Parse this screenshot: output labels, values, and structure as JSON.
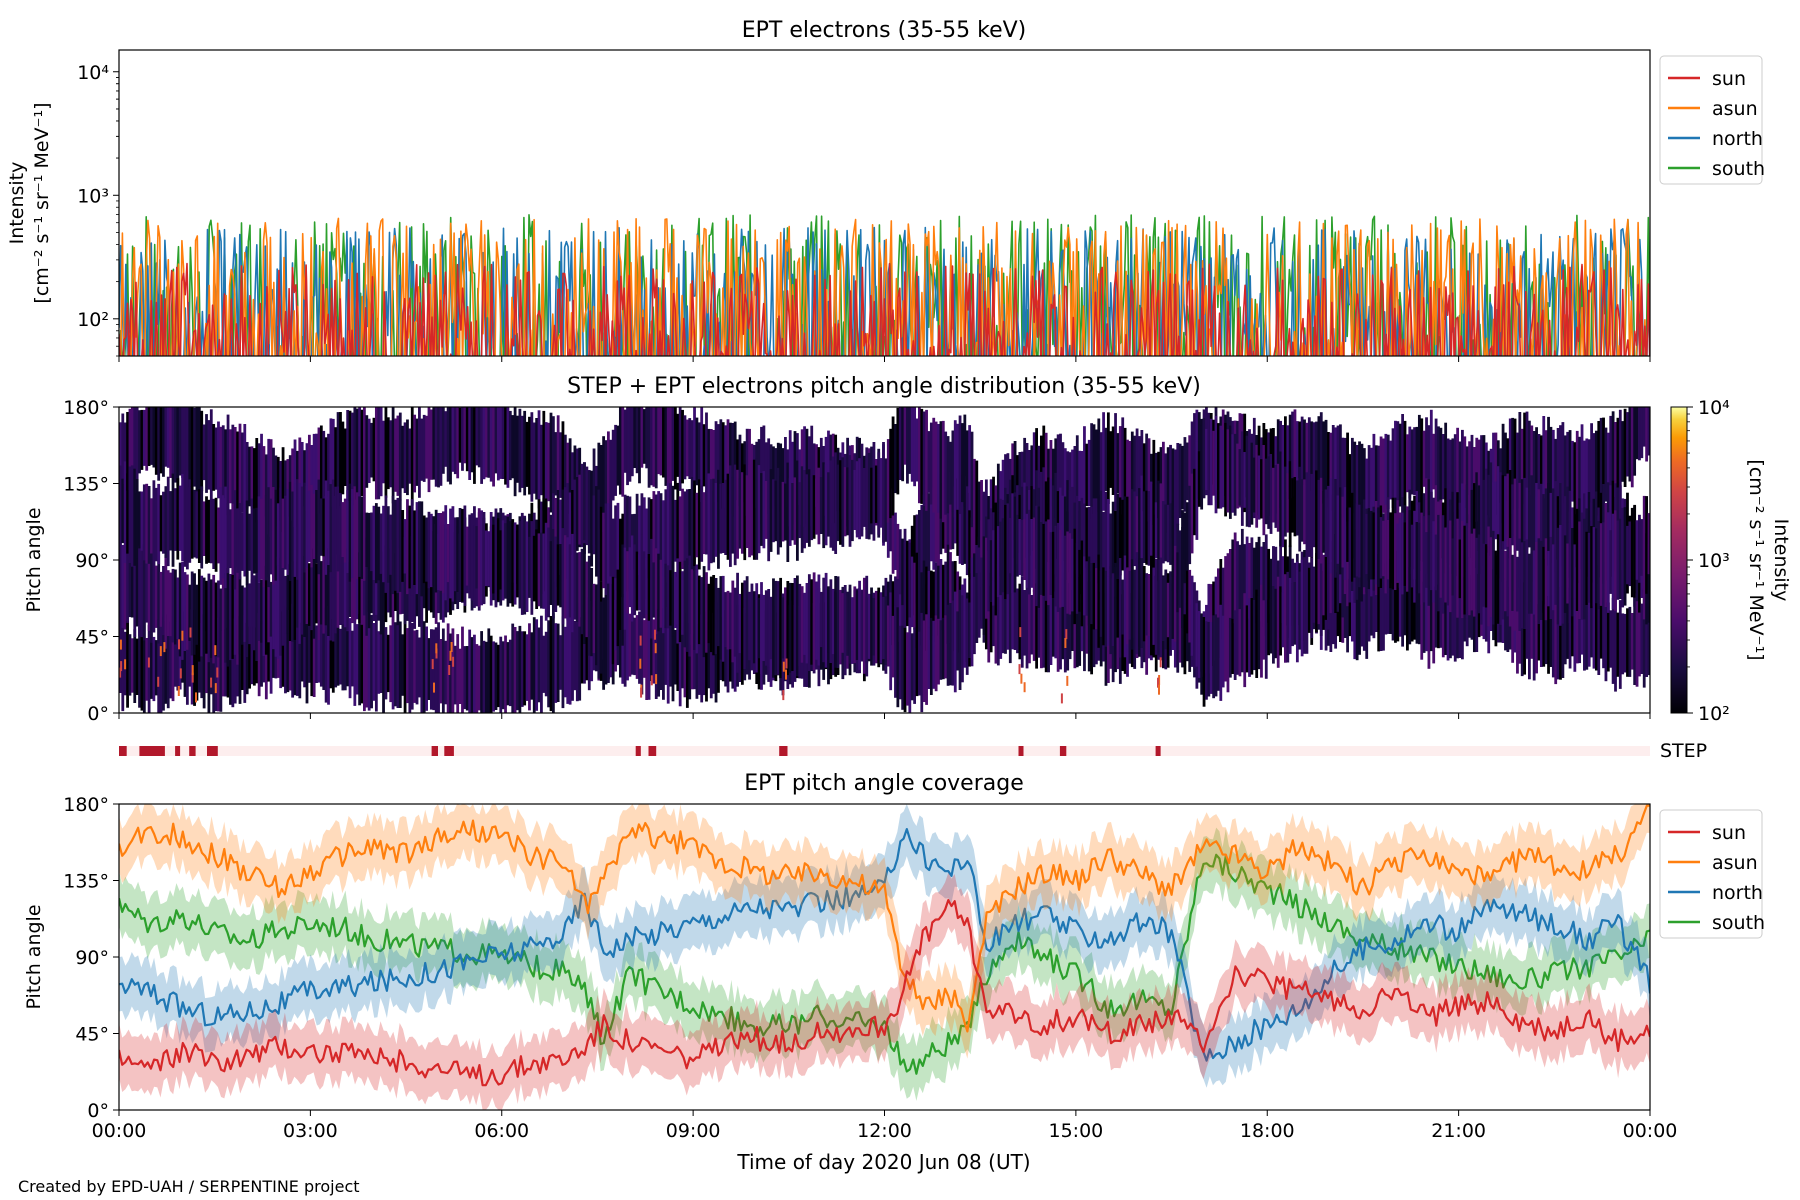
{
  "figure": {
    "footer": "Created by EPD-UAH / SERPENTINE project",
    "xlabel": "Time of day 2020 Jun 08 (UT)",
    "x_tick_labels": [
      "00:00",
      "03:00",
      "06:00",
      "09:00",
      "12:00",
      "15:00",
      "18:00",
      "21:00",
      "00:00"
    ]
  },
  "colors": {
    "sun": "#d62728",
    "asun": "#ff7f0e",
    "north": "#1f77b4",
    "south": "#2ca02c",
    "step_flag": "#b2182b",
    "step_band": "#fdeeee"
  },
  "chart_data": [
    {
      "type": "line",
      "title": "EPT electrons (35-55 keV)",
      "ylabel_line1": "Intensity",
      "ylabel_line2": "[cm⁻² s⁻¹ sr⁻¹ MeV⁻¹]",
      "yscale": "log",
      "ylim": [
        50,
        15000
      ],
      "y_tick_labels": [
        "10²",
        "10³",
        "10⁴"
      ],
      "x_range_hours": [
        0,
        24
      ],
      "legend": {
        "placement": "outside-right",
        "entries": [
          "sun",
          "asun",
          "north",
          "south"
        ]
      },
      "series": [
        {
          "name": "sun",
          "typical_range": [
            50,
            280
          ]
        },
        {
          "name": "asun",
          "typical_range": [
            60,
            650
          ]
        },
        {
          "name": "north",
          "typical_range": [
            60,
            550
          ]
        },
        {
          "name": "south",
          "typical_range": [
            60,
            700
          ]
        }
      ]
    },
    {
      "type": "heatmap",
      "title": "STEP + EPT electrons pitch angle distribution (35-55 keV)",
      "ylabel": "Pitch angle",
      "ylim": [
        0,
        180
      ],
      "y_tick_labels": [
        "0°",
        "45°",
        "90°",
        "135°",
        "180°"
      ],
      "x_range_hours": [
        0,
        24
      ],
      "colorbar": {
        "label_line1": "Intensity",
        "label_line2": "[cm⁻² s⁻¹ sr⁻¹ MeV⁻¹]",
        "scale": "log",
        "range": [
          100,
          10000
        ],
        "tick_labels": [
          "10²",
          "10³",
          "10⁴"
        ],
        "colormap": "inferno"
      }
    },
    {
      "type": "flag-strip",
      "label": "STEP",
      "intervals_hours": [
        [
          0.0,
          0.12
        ],
        [
          0.32,
          0.72
        ],
        [
          0.88,
          0.95
        ],
        [
          1.1,
          1.2
        ],
        [
          1.38,
          1.55
        ],
        [
          4.9,
          5.0
        ],
        [
          5.1,
          5.25
        ],
        [
          8.1,
          8.18
        ],
        [
          8.3,
          8.42
        ],
        [
          10.35,
          10.48
        ],
        [
          14.1,
          14.16
        ],
        [
          14.75,
          14.85
        ],
        [
          16.25,
          16.31
        ]
      ]
    },
    {
      "type": "line",
      "title": "EPT pitch angle coverage",
      "ylabel": "Pitch angle",
      "ylim": [
        0,
        180
      ],
      "y_tick_labels": [
        "0°",
        "45°",
        "90°",
        "135°",
        "180°"
      ],
      "x_range_hours": [
        0,
        24
      ],
      "legend": {
        "placement": "outside-right",
        "entries": [
          "sun",
          "asun",
          "north",
          "south"
        ]
      },
      "x": [
        0,
        0.5,
        1,
        1.5,
        2,
        2.5,
        3,
        3.5,
        4,
        4.5,
        5,
        5.5,
        6,
        6.5,
        7,
        7.3,
        7.6,
        8,
        8.5,
        9,
        9.5,
        10,
        10.5,
        11,
        11.5,
        12,
        12.3,
        12.6,
        13,
        13.3,
        13.6,
        14,
        14.5,
        15,
        15.5,
        16,
        16.5,
        17,
        17.5,
        18,
        18.5,
        19,
        19.5,
        20,
        20.5,
        21,
        21.5,
        22,
        22.5,
        23,
        23.5,
        24
      ],
      "series": [
        {
          "name": "sun",
          "values": [
            30,
            25,
            35,
            28,
            32,
            38,
            35,
            33,
            30,
            28,
            25,
            20,
            22,
            28,
            30,
            38,
            50,
            40,
            35,
            30,
            38,
            42,
            40,
            45,
            48,
            50,
            70,
            100,
            120,
            110,
            60,
            55,
            50,
            55,
            45,
            50,
            55,
            40,
            80,
            75,
            70,
            65,
            60,
            70,
            55,
            60,
            65,
            50,
            45,
            55,
            40,
            45
          ]
        },
        {
          "name": "asun",
          "values": [
            150,
            165,
            160,
            150,
            140,
            130,
            140,
            150,
            155,
            150,
            160,
            165,
            160,
            150,
            145,
            120,
            135,
            165,
            160,
            155,
            145,
            140,
            138,
            140,
            135,
            128,
            80,
            60,
            70,
            50,
            110,
            130,
            140,
            135,
            150,
            140,
            130,
            155,
            150,
            140,
            155,
            145,
            130,
            145,
            150,
            140,
            135,
            150,
            145,
            140,
            150,
            178
          ]
        },
        {
          "name": "north",
          "values": [
            75,
            70,
            60,
            55,
            58,
            62,
            70,
            72,
            75,
            78,
            82,
            88,
            92,
            95,
            105,
            125,
            95,
            100,
            105,
            110,
            115,
            120,
            118,
            122,
            125,
            130,
            165,
            150,
            140,
            150,
            95,
            110,
            115,
            105,
            100,
            110,
            105,
            30,
            40,
            50,
            60,
            80,
            95,
            100,
            110,
            105,
            120,
            115,
            110,
            100,
            110,
            75
          ]
        },
        {
          "name": "south",
          "values": [
            120,
            110,
            115,
            105,
            100,
            105,
            110,
            108,
            100,
            98,
            95,
            92,
            90,
            85,
            80,
            70,
            40,
            80,
            70,
            62,
            55,
            50,
            50,
            55,
            52,
            50,
            25,
            30,
            40,
            45,
            80,
            100,
            90,
            80,
            60,
            65,
            60,
            150,
            140,
            130,
            120,
            110,
            100,
            95,
            90,
            85,
            80,
            75,
            80,
            85,
            90,
            100
          ]
        }
      ]
    }
  ]
}
